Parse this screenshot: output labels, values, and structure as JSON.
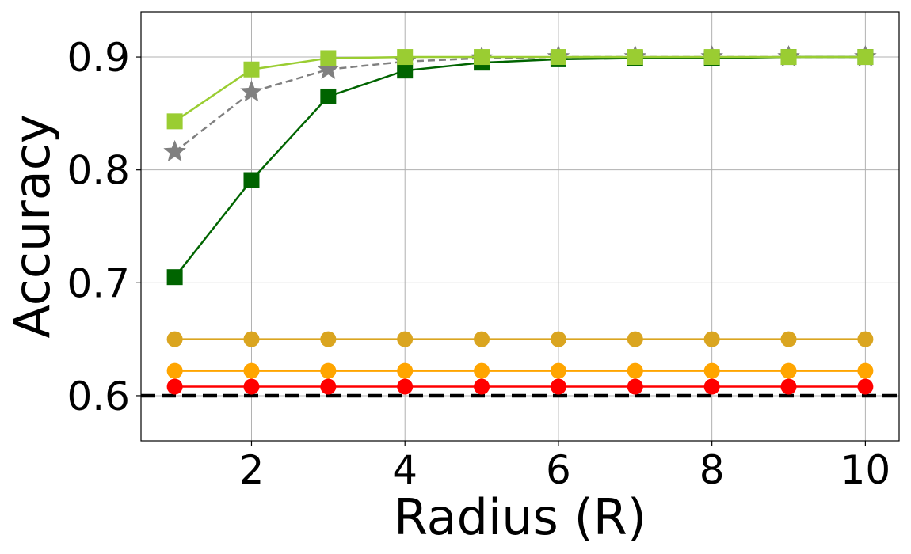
{
  "chart_data": {
    "type": "line",
    "xlabel": "Radius (R)",
    "ylabel": "Accuracy",
    "xlim": [
      0.56,
      10.44
    ],
    "ylim": [
      0.56,
      0.94
    ],
    "x_ticks": [
      2,
      4,
      6,
      8,
      10
    ],
    "x_tick_labels": [
      "2",
      "4",
      "6",
      "8",
      "10"
    ],
    "y_ticks": [
      0.6,
      0.7,
      0.8,
      0.9
    ],
    "y_tick_labels": [
      "0.6",
      "0.7",
      "0.8",
      "0.9"
    ],
    "grid": true,
    "x": [
      1,
      2,
      3,
      4,
      5,
      6,
      7,
      8,
      9,
      10
    ],
    "series": [
      {
        "values": [
          0.843,
          0.889,
          0.899,
          0.9,
          0.9,
          0.9,
          0.9,
          0.9,
          0.9,
          0.9
        ],
        "color": "#9acd32",
        "marker": "square",
        "dash": "solid"
      },
      {
        "values": [
          0.705,
          0.791,
          0.865,
          0.888,
          0.895,
          0.898,
          0.899,
          0.899,
          0.9,
          0.9
        ],
        "color": "#006400",
        "marker": "square",
        "dash": "solid"
      },
      {
        "values": [
          0.816,
          0.869,
          0.889,
          0.896,
          0.899,
          0.9,
          0.9,
          0.9,
          0.9,
          0.9
        ],
        "color": "#808080",
        "marker": "star",
        "dash": "dashed"
      },
      {
        "values": [
          0.65,
          0.65,
          0.65,
          0.65,
          0.65,
          0.65,
          0.65,
          0.65,
          0.65,
          0.65
        ],
        "color": "#daa520",
        "marker": "circle",
        "dash": "solid"
      },
      {
        "values": [
          0.622,
          0.622,
          0.622,
          0.622,
          0.622,
          0.622,
          0.622,
          0.622,
          0.622,
          0.622
        ],
        "color": "#ffa500",
        "marker": "circle",
        "dash": "solid"
      },
      {
        "values": [
          0.608,
          0.608,
          0.608,
          0.608,
          0.608,
          0.608,
          0.608,
          0.608,
          0.608,
          0.608
        ],
        "color": "#ff0000",
        "marker": "circle",
        "dash": "solid"
      }
    ],
    "reference_line": {
      "y": 0.6,
      "color": "#000000",
      "dash": "dashed"
    }
  }
}
